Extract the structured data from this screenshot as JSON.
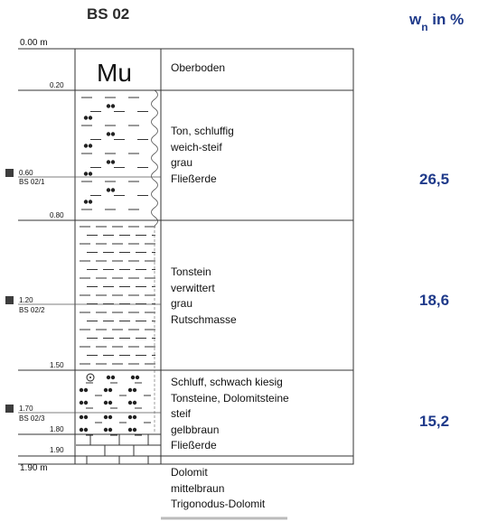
{
  "profile": {
    "title": "BS 02",
    "moisture_header": {
      "main": "w",
      "sub": "n",
      "rest": " in %"
    },
    "top_depth": "0.00 m",
    "bottom_depth": "1.90 m",
    "layer_depths": [
      "0.20",
      "0.80",
      "1.50",
      "1.80",
      "1.90"
    ],
    "layers": [
      {
        "lines": [
          "Oberboden"
        ]
      },
      {
        "lines": [
          "Ton, schluffig",
          "weich-steif",
          "grau",
          "Fließerde"
        ]
      },
      {
        "lines": [
          "Tonstein",
          "verwittert",
          "grau",
          "Rutschmasse"
        ]
      },
      {
        "lines": [
          "Schluff, schwach kiesig",
          "Tonsteine, Dolomitsteine",
          "steif",
          "gelbbraun",
          "Fließerde"
        ]
      },
      {
        "lines": [
          "Dolomit",
          "mittelbraun",
          "Trigonodus-Dolomit"
        ]
      }
    ],
    "samples": [
      {
        "depth": "0.60",
        "id": "BS 02/1",
        "wn": "26,5"
      },
      {
        "depth": "1.20",
        "id": "BS 02/2",
        "wn": "18,6"
      },
      {
        "depth": "1.70",
        "id": "BS 02/3",
        "wn": "15,2"
      }
    ],
    "topsoil_symbol": "Mu",
    "colors": {
      "accent": "#1f3a8a",
      "sample_marker": "#3d3d3d",
      "line": "#333333"
    }
  }
}
